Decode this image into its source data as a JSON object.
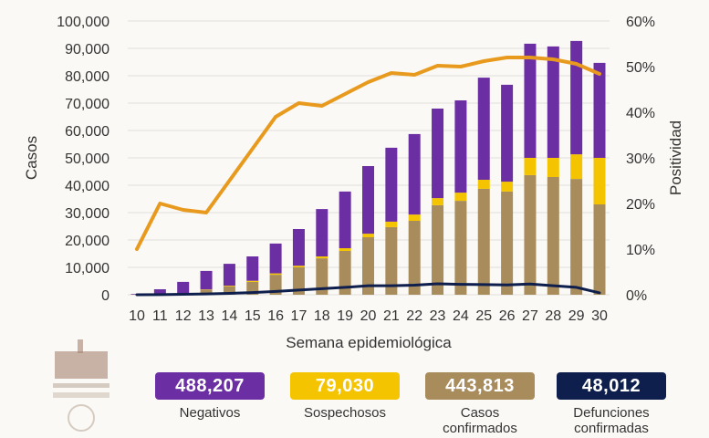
{
  "chart_data": {
    "type": "bar",
    "stacked": true,
    "xlabel": "Semana epidemiológica",
    "ylabel": "Casos",
    "y2label": "Positividad",
    "ylim": [
      0,
      100000
    ],
    "y2lim": [
      0,
      60
    ],
    "yticks": [
      "0",
      "10,000",
      "20,000",
      "30,000",
      "40,000",
      "50,000",
      "60,000",
      "70,000",
      "80,000",
      "90,000",
      "100,000"
    ],
    "y2ticks": [
      "0%",
      "10%",
      "20%",
      "30%",
      "40%",
      "50%",
      "60%"
    ],
    "grid": true,
    "categories": [
      "10",
      "11",
      "12",
      "13",
      "14",
      "15",
      "16",
      "17",
      "18",
      "19",
      "20",
      "21",
      "22",
      "23",
      "24",
      "25",
      "26",
      "27",
      "28",
      "29",
      "30"
    ],
    "series": [
      {
        "name": "Casos confirmados",
        "kind": "bar",
        "color": "#a88c5c",
        "values": [
          100,
          200,
          400,
          1700,
          3000,
          4700,
          7300,
          10000,
          13300,
          16000,
          21000,
          24700,
          27000,
          32700,
          34300,
          38700,
          37700,
          43700,
          43000,
          42300,
          33000
        ]
      },
      {
        "name": "Sospechosos",
        "kind": "bar",
        "color": "#f5c400",
        "values": [
          0,
          0,
          100,
          200,
          300,
          400,
          500,
          600,
          700,
          1000,
          1300,
          2000,
          2300,
          2600,
          3000,
          3300,
          3600,
          6300,
          7000,
          9000,
          17000
        ]
      },
      {
        "name": "Negativos",
        "kind": "bar",
        "color": "#6b2fa3",
        "values": [
          200,
          1800,
          4200,
          6800,
          8000,
          8900,
          10900,
          13400,
          17300,
          20700,
          24700,
          27000,
          29400,
          32700,
          33700,
          37300,
          35400,
          41700,
          40700,
          41400,
          34700
        ]
      },
      {
        "name": "Defunciones confirmadas",
        "kind": "line",
        "axis": "left",
        "color": "#0f1f4d",
        "values": [
          0,
          50,
          150,
          300,
          500,
          800,
          1200,
          1700,
          2200,
          2700,
          3300,
          3300,
          3500,
          4000,
          3800,
          3700,
          3600,
          3900,
          3300,
          2700,
          700
        ]
      },
      {
        "name": "Positividad",
        "kind": "line",
        "axis": "right",
        "color": "#e89a1e",
        "values": [
          10,
          20,
          18.6,
          18,
          25,
          32,
          39,
          42,
          41.4,
          44,
          46.6,
          48.6,
          48.2,
          50.2,
          50,
          51.2,
          52,
          52,
          51.6,
          50.6,
          48.4
        ]
      }
    ]
  },
  "legend": [
    {
      "value": "488,207",
      "label": "Negativos",
      "color": "#6b2fa3"
    },
    {
      "value": "79,030",
      "label": "Sospechosos",
      "color": "#f5c400"
    },
    {
      "value": "443,813",
      "label": "Casos confirmados",
      "color": "#a88c5c"
    },
    {
      "value": "48,012",
      "label": "Defunciones confirmadas",
      "color": "#0f1f4d"
    }
  ]
}
